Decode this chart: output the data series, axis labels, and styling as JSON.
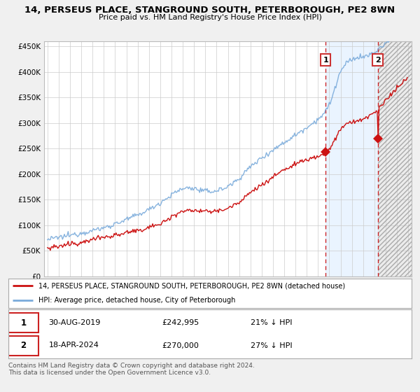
{
  "title": "14, PERSEUS PLACE, STANGROUND SOUTH, PETERBOROUGH, PE2 8WN",
  "subtitle": "Price paid vs. HM Land Registry's House Price Index (HPI)",
  "legend_line1": "14, PERSEUS PLACE, STANGROUND SOUTH, PETERBOROUGH, PE2 8WN (detached house)",
  "legend_line2": "HPI: Average price, detached house, City of Peterborough",
  "marker1_date": "30-AUG-2019",
  "marker1_price": 242995,
  "marker1_year": 2019.667,
  "marker1_label": "21% ↓ HPI",
  "marker2_date": "18-APR-2024",
  "marker2_price": 270000,
  "marker2_year": 2024.292,
  "marker2_label": "27% ↓ HPI",
  "footer": "Contains HM Land Registry data © Crown copyright and database right 2024.\nThis data is licensed under the Open Government Licence v3.0.",
  "hpi_color": "#7aabdb",
  "price_color": "#cc1111",
  "background_color": "#f0f0f0",
  "plot_bg_color": "#ffffff",
  "shaded_blue_color": "#ddeeff",
  "shaded_gray_color": "#e0e0e0",
  "grid_color": "#cccccc",
  "ylim": [
    0,
    460000
  ],
  "yticks": [
    0,
    50000,
    100000,
    150000,
    200000,
    250000,
    300000,
    350000,
    400000,
    450000
  ],
  "year_start": 1995,
  "year_end": 2027
}
